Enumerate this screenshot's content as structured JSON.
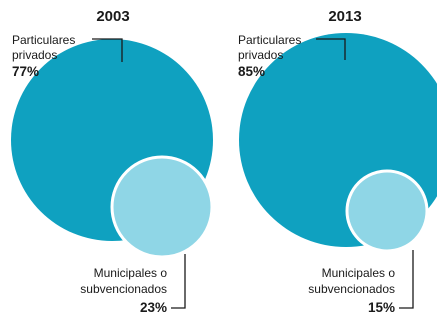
{
  "colors": {
    "particulares": "#0fa1c0",
    "municipales": "#8fd6e6",
    "inner_stroke": "#ffffff",
    "text": "#1a1a1a"
  },
  "chart_data": {
    "type": "nested-bubble",
    "panels": [
      {
        "year": "2003",
        "segments": [
          {
            "label_line1": "Particulares",
            "label_line2": "privados",
            "value_label": "77%",
            "value": 77
          },
          {
            "label_line1": "Municipales o",
            "label_line2": "subvencionados",
            "value_label": "23%",
            "value": 23
          }
        ]
      },
      {
        "year": "2013",
        "segments": [
          {
            "label_line1": "Particulares",
            "label_line2": "privados",
            "value_label": "85%",
            "value": 85
          },
          {
            "label_line1": "Municipales o",
            "label_line2": "subvencionados",
            "value_label": "15%",
            "value": 15
          }
        ]
      }
    ]
  }
}
